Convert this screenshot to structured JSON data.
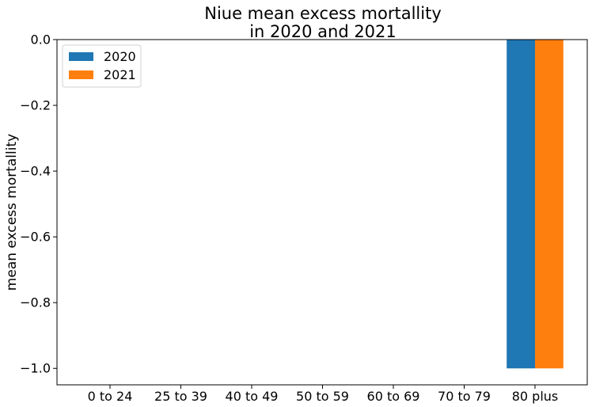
{
  "chart_data": {
    "type": "bar",
    "title_lines": [
      "Niue mean excess mortallity",
      "in 2020 and 2021"
    ],
    "xlabel": "",
    "ylabel": "mean excess mortallity",
    "categories": [
      "0 to 24",
      "25 to 39",
      "40 to 49",
      "50 to 59",
      "60 to 69",
      "70 to 79",
      "80 plus"
    ],
    "series": [
      {
        "name": "2020",
        "color": "#1f77b4",
        "values": [
          null,
          null,
          null,
          null,
          null,
          null,
          -1.0
        ]
      },
      {
        "name": "2021",
        "color": "#ff7f0e",
        "values": [
          null,
          null,
          null,
          null,
          null,
          null,
          -1.0
        ]
      }
    ],
    "ylim": [
      -1.05,
      0.0
    ],
    "yticks": [
      0.0,
      -0.2,
      -0.4,
      -0.6,
      -0.8,
      -1.0
    ],
    "ytick_labels": [
      "0.0",
      "−0.2",
      "−0.4",
      "−0.6",
      "−0.8",
      "−1.0"
    ],
    "grid": false,
    "legend_position": "top-left"
  }
}
